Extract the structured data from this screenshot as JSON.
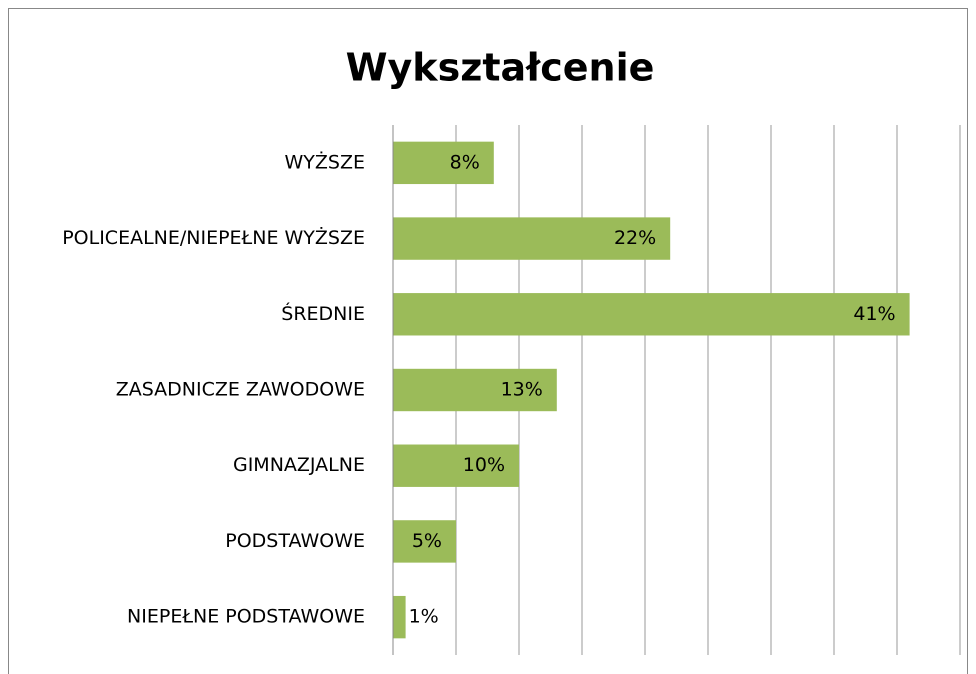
{
  "chart_data": {
    "type": "barh",
    "title": "Wykształcenie",
    "categories": [
      "WYŻSZE",
      "POLICEALNE/NIEPEŁNE WYŻSZE",
      "ŚREDNIE",
      "ZASADNICZE ZAWODOWE",
      "GIMNAZJALNE",
      "PODSTAWOWE",
      "NIEPEŁNE PODSTAWOWE"
    ],
    "values": [
      8,
      22,
      41,
      13,
      10,
      5,
      1
    ],
    "value_labels": [
      "8%",
      "22%",
      "41%",
      "13%",
      "10%",
      "5%",
      "1%"
    ],
    "color": "#9bbb59",
    "xlim": [
      0,
      45
    ],
    "xticks": [
      0,
      5,
      10,
      15,
      20,
      25,
      30,
      35,
      40,
      45
    ],
    "grid": true
  }
}
